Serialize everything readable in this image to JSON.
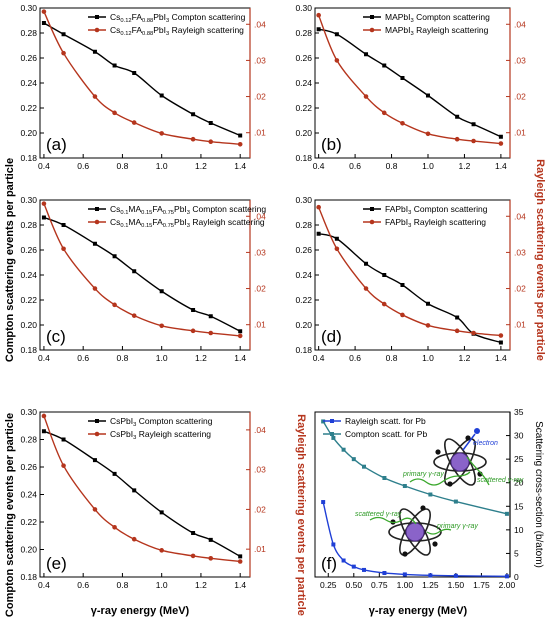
{
  "figure": {
    "shared_xlabel": "γ-ray energy (MeV)",
    "shared_left_ylabel": "Compton scattering events per particle",
    "shared_right_ylabel": "Rayleigh scattering events per particle",
    "colors": {
      "compton": "#000000",
      "rayleigh": "#b5351d",
      "rayleigh_axis": "#b5351d",
      "blue": "#1f3fd6",
      "teal": "#2e7f8c"
    }
  },
  "chart_data": [
    {
      "id": "a",
      "panel_label": "(a)",
      "type": "line",
      "xlim": [
        0.38,
        1.45
      ],
      "x_ticks": [
        0.4,
        0.6,
        0.8,
        1.0,
        1.2,
        1.4
      ],
      "y_left": {
        "lim": [
          0.18,
          0.3
        ],
        "ticks": [
          0.18,
          0.2,
          0.22,
          0.24,
          0.26,
          0.28,
          0.3
        ]
      },
      "y_right": {
        "lim": [
          0.003,
          0.0445
        ],
        "ticks": [
          0.01,
          0.02,
          0.03,
          0.04
        ],
        "tick_labels": [
          ".01",
          ".02",
          ".03",
          ".04"
        ]
      },
      "legend_pos": "top-right",
      "series": [
        {
          "name": "Cs0.12FA0.88PbI3 Compton scattering",
          "legend_parts": [
            [
              "Cs",
              ""
            ],
            [
              "0.12",
              "sub"
            ],
            [
              "FA",
              ""
            ],
            [
              "0.88",
              "sub"
            ],
            [
              "PbI",
              ""
            ],
            [
              "3",
              "sub"
            ],
            [
              " Compton scattering",
              ""
            ]
          ],
          "axis": "left",
          "color": "compton",
          "marker": "square",
          "x": [
            0.4,
            0.5,
            0.66,
            0.76,
            0.86,
            1.0,
            1.16,
            1.25,
            1.4
          ],
          "y": [
            0.288,
            0.279,
            0.265,
            0.254,
            0.248,
            0.23,
            0.215,
            0.208,
            0.198
          ]
        },
        {
          "name": "Cs0.12FA0.88PbI3 Rayleigh scattering",
          "legend_parts": [
            [
              "Cs",
              ""
            ],
            [
              "0.12",
              "sub"
            ],
            [
              "FA",
              ""
            ],
            [
              "0.88",
              "sub"
            ],
            [
              "PbI",
              ""
            ],
            [
              "3",
              "sub"
            ],
            [
              " Rayleigh scattering",
              ""
            ]
          ],
          "axis": "right",
          "color": "rayleigh",
          "marker": "circle",
          "x": [
            0.4,
            0.5,
            0.66,
            0.76,
            0.86,
            1.0,
            1.16,
            1.25,
            1.4
          ],
          "y": [
            0.0435,
            0.032,
            0.02,
            0.0155,
            0.0128,
            0.0098,
            0.0082,
            0.0075,
            0.0068
          ]
        }
      ]
    },
    {
      "id": "b",
      "panel_label": "(b)",
      "type": "line",
      "xlim": [
        0.38,
        1.45
      ],
      "x_ticks": [
        0.4,
        0.6,
        0.8,
        1.0,
        1.2,
        1.4
      ],
      "y_left": {
        "lim": [
          0.18,
          0.3
        ],
        "ticks": [
          0.18,
          0.2,
          0.22,
          0.24,
          0.26,
          0.28,
          0.3
        ]
      },
      "y_right": {
        "lim": [
          0.003,
          0.0445
        ],
        "ticks": [
          0.01,
          0.02,
          0.03,
          0.04
        ],
        "tick_labels": [
          ".01",
          ".02",
          ".03",
          ".04"
        ]
      },
      "legend_pos": "top-right",
      "series": [
        {
          "name": "MAPbI3 Compton scattering",
          "legend_parts": [
            [
              "MAPbI",
              ""
            ],
            [
              "3",
              "sub"
            ],
            [
              " Compton scattering",
              ""
            ]
          ],
          "axis": "left",
          "color": "compton",
          "marker": "square",
          "x": [
            0.4,
            0.5,
            0.66,
            0.76,
            0.86,
            1.0,
            1.16,
            1.25,
            1.4
          ],
          "y": [
            0.283,
            0.279,
            0.263,
            0.254,
            0.244,
            0.23,
            0.213,
            0.207,
            0.197
          ]
        },
        {
          "name": "MAPbI3 Rayleigh scattering",
          "legend_parts": [
            [
              "MAPbI",
              ""
            ],
            [
              "3",
              "sub"
            ],
            [
              " Rayleigh scattering",
              ""
            ]
          ],
          "axis": "right",
          "color": "rayleigh",
          "marker": "circle",
          "x": [
            0.4,
            0.5,
            0.66,
            0.76,
            0.86,
            1.0,
            1.16,
            1.25,
            1.4
          ],
          "y": [
            0.0425,
            0.03,
            0.02,
            0.0155,
            0.0126,
            0.0097,
            0.0082,
            0.0077,
            0.007
          ]
        }
      ]
    },
    {
      "id": "c",
      "panel_label": "(c)",
      "type": "line",
      "xlim": [
        0.38,
        1.45
      ],
      "x_ticks": [
        0.4,
        0.6,
        0.8,
        1.0,
        1.2,
        1.4
      ],
      "y_left": {
        "lim": [
          0.18,
          0.3
        ],
        "ticks": [
          0.18,
          0.2,
          0.22,
          0.24,
          0.26,
          0.28,
          0.3
        ]
      },
      "y_right": {
        "lim": [
          0.003,
          0.0445
        ],
        "ticks": [
          0.01,
          0.02,
          0.03,
          0.04
        ],
        "tick_labels": [
          ".01",
          ".02",
          ".03",
          ".04"
        ]
      },
      "legend_pos": "top-right",
      "series": [
        {
          "name": "Cs0.1MA0.15FA0.75PbI3 Compton scattering",
          "legend_parts": [
            [
              "Cs",
              ""
            ],
            [
              "0.1",
              "sub"
            ],
            [
              "MA",
              ""
            ],
            [
              "0.15",
              "sub"
            ],
            [
              "FA",
              ""
            ],
            [
              "0.75",
              "sub"
            ],
            [
              "PbI",
              ""
            ],
            [
              "3",
              "sub"
            ],
            [
              " Compton scattering",
              ""
            ]
          ],
          "axis": "left",
          "color": "compton",
          "marker": "square",
          "x": [
            0.4,
            0.5,
            0.66,
            0.76,
            0.86,
            1.0,
            1.16,
            1.25,
            1.4
          ],
          "y": [
            0.286,
            0.28,
            0.265,
            0.255,
            0.243,
            0.227,
            0.212,
            0.207,
            0.195
          ]
        },
        {
          "name": "Cs0.1MA0.15FA0.75PbI3 Rayleigh scattering",
          "legend_parts": [
            [
              "Cs",
              ""
            ],
            [
              "0.1",
              "sub"
            ],
            [
              "MA",
              ""
            ],
            [
              "0.15",
              "sub"
            ],
            [
              "FA",
              ""
            ],
            [
              "0.75",
              "sub"
            ],
            [
              "PbI",
              ""
            ],
            [
              "3",
              "sub"
            ],
            [
              " Rayleigh scattering",
              ""
            ]
          ],
          "axis": "right",
          "color": "rayleigh",
          "marker": "circle",
          "x": [
            0.4,
            0.5,
            0.66,
            0.76,
            0.86,
            1.0,
            1.16,
            1.25,
            1.4
          ],
          "y": [
            0.0435,
            0.031,
            0.02,
            0.0155,
            0.0125,
            0.0097,
            0.0083,
            0.0077,
            0.0069
          ]
        }
      ]
    },
    {
      "id": "d",
      "panel_label": "(d)",
      "type": "line",
      "xlim": [
        0.38,
        1.45
      ],
      "x_ticks": [
        0.4,
        0.6,
        0.8,
        1.0,
        1.2,
        1.4
      ],
      "y_left": {
        "lim": [
          0.18,
          0.3
        ],
        "ticks": [
          0.18,
          0.2,
          0.22,
          0.24,
          0.26,
          0.28,
          0.3
        ]
      },
      "y_right": {
        "lim": [
          0.003,
          0.0445
        ],
        "ticks": [
          0.01,
          0.02,
          0.03,
          0.04
        ],
        "tick_labels": [
          ".01",
          ".02",
          ".03",
          ".04"
        ]
      },
      "legend_pos": "top-right",
      "series": [
        {
          "name": "FAPbI3 Compton scattering",
          "legend_parts": [
            [
              "FAPbI",
              ""
            ],
            [
              "3",
              "sub"
            ],
            [
              " Compton scattering",
              ""
            ]
          ],
          "axis": "left",
          "color": "compton",
          "marker": "square",
          "x": [
            0.4,
            0.5,
            0.66,
            0.76,
            0.86,
            1.0,
            1.16,
            1.25,
            1.4
          ],
          "y": [
            0.273,
            0.269,
            0.249,
            0.24,
            0.232,
            0.217,
            0.206,
            0.193,
            0.186
          ]
        },
        {
          "name": "FAPbI3 Rayleigh scattering",
          "legend_parts": [
            [
              "FAPbI",
              ""
            ],
            [
              "3",
              "sub"
            ],
            [
              " Rayleigh scattering",
              ""
            ]
          ],
          "axis": "right",
          "color": "rayleigh",
          "marker": "circle",
          "x": [
            0.4,
            0.5,
            0.66,
            0.76,
            0.86,
            1.0,
            1.16,
            1.25,
            1.4
          ],
          "y": [
            0.0425,
            0.031,
            0.02,
            0.0157,
            0.0127,
            0.0098,
            0.0083,
            0.0077,
            0.007
          ]
        }
      ]
    },
    {
      "id": "e",
      "panel_label": "(e)",
      "type": "line",
      "xlim": [
        0.38,
        1.45
      ],
      "x_ticks": [
        0.4,
        0.6,
        0.8,
        1.0,
        1.2,
        1.4
      ],
      "y_left": {
        "lim": [
          0.18,
          0.3
        ],
        "ticks": [
          0.18,
          0.2,
          0.22,
          0.24,
          0.26,
          0.28,
          0.3
        ]
      },
      "y_right": {
        "lim": [
          0.003,
          0.0445
        ],
        "ticks": [
          0.01,
          0.02,
          0.03,
          0.04
        ],
        "tick_labels": [
          ".01",
          ".02",
          ".03",
          ".04"
        ]
      },
      "legend_pos": "top-right",
      "series": [
        {
          "name": "CsPbI3 Compton scattering",
          "legend_parts": [
            [
              "CsPbI",
              ""
            ],
            [
              "3",
              "sub"
            ],
            [
              " Compton scattering",
              ""
            ]
          ],
          "axis": "left",
          "color": "compton",
          "marker": "square",
          "x": [
            0.4,
            0.5,
            0.66,
            0.76,
            0.86,
            1.0,
            1.16,
            1.25,
            1.4
          ],
          "y": [
            0.286,
            0.28,
            0.265,
            0.255,
            0.243,
            0.227,
            0.212,
            0.207,
            0.195
          ]
        },
        {
          "name": "CsPbI3 Rayleigh scattering",
          "legend_parts": [
            [
              "CsPbI",
              ""
            ],
            [
              "3",
              "sub"
            ],
            [
              " Rayleigh scattering",
              ""
            ]
          ],
          "axis": "right",
          "color": "rayleigh",
          "marker": "circle",
          "x": [
            0.4,
            0.5,
            0.66,
            0.76,
            0.86,
            1.0,
            1.16,
            1.25,
            1.4
          ],
          "y": [
            0.0435,
            0.031,
            0.02,
            0.0155,
            0.0125,
            0.0097,
            0.0083,
            0.0077,
            0.0069
          ]
        }
      ]
    },
    {
      "id": "f",
      "panel_label": "(f)",
      "type": "line",
      "xlim": [
        0.12,
        2.03
      ],
      "x_ticks": [
        0.25,
        0.5,
        0.75,
        1.0,
        1.25,
        1.5,
        1.75,
        2.0
      ],
      "x_tick_labels": [
        "0.25",
        "0.50",
        "0.75",
        "1.00",
        "1.25",
        "1.50",
        "1.75",
        "2.00"
      ],
      "y_right": {
        "lim": [
          0,
          35
        ],
        "ticks": [
          0,
          5,
          10,
          15,
          20,
          25,
          30,
          35
        ],
        "label": "Scattering cross-section (b/atom)"
      },
      "legend_pos": "top-left",
      "annotations": [
        "electron",
        "primary γ-ray",
        "scattered γ-ray",
        "scattered γ-ray",
        "primary γ-ray"
      ],
      "series": [
        {
          "name": "Rayleigh scatt. for Pb",
          "legend_parts": [
            [
              "Rayleigh scatt. for Pb",
              ""
            ]
          ],
          "axis": "right",
          "color": "blue",
          "marker": "square",
          "x": [
            0.2,
            0.3,
            0.4,
            0.5,
            0.6,
            0.8,
            1.0,
            1.25,
            1.5,
            2.0
          ],
          "y": [
            15.9,
            6.9,
            3.5,
            2.2,
            1.5,
            0.85,
            0.55,
            0.35,
            0.25,
            0.14
          ]
        },
        {
          "name": "Compton scatt. for Pb",
          "legend_parts": [
            [
              "Compton scatt. for Pb",
              ""
            ]
          ],
          "axis": "right",
          "color": "teal",
          "marker": "square",
          "x": [
            0.2,
            0.3,
            0.4,
            0.5,
            0.6,
            0.8,
            1.0,
            1.25,
            1.5,
            2.0
          ],
          "y": [
            33.0,
            29.5,
            27.0,
            25.0,
            23.4,
            21.0,
            19.3,
            17.5,
            16.0,
            13.4
          ]
        }
      ]
    }
  ]
}
